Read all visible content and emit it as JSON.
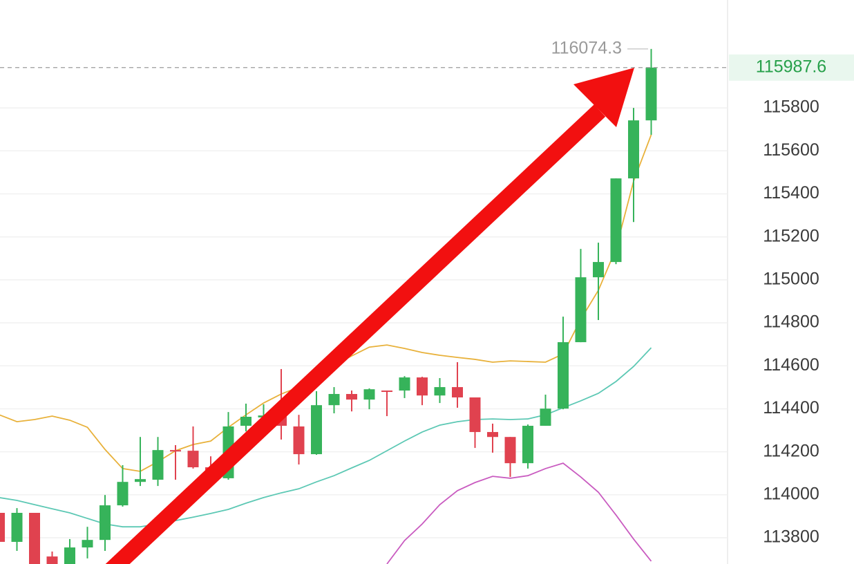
{
  "chart_data": {
    "type": "candlestick",
    "up_color": "#36b35a",
    "down_color": "#e0424f",
    "ylim": [
      113678,
      116302
    ],
    "yticks": [
      113800,
      114000,
      114200,
      114400,
      114600,
      114800,
      115000,
      115200,
      115400,
      115600,
      115800
    ],
    "grid": true,
    "high_marker": 116074.3,
    "last_price": 115987.6,
    "open": [
      113916,
      113781,
      113916,
      113713,
      113649,
      113755,
      113790,
      113951,
      114060,
      114070,
      114208,
      114205,
      114128,
      114077,
      114321,
      114360,
      114369,
      114318,
      114189,
      114417,
      114469,
      114443,
      114485,
      114485,
      114546,
      114462,
      114501,
      114453,
      114292,
      114269,
      114147,
      114321,
      114401,
      114710,
      115012,
      115083,
      115472,
      115742
    ],
    "high": [
      113938,
      113938,
      113916,
      113736,
      113794,
      113851,
      113999,
      114138,
      114269,
      114269,
      114231,
      114318,
      114179,
      114385,
      114424,
      114421,
      114585,
      114372,
      114482,
      114501,
      114485,
      114495,
      114485,
      114552,
      114549,
      114543,
      114617,
      114453,
      114331,
      114269,
      114327,
      114466,
      114829,
      115144,
      115173,
      115472,
      115800,
      116074.3
    ],
    "low": [
      113739,
      113739,
      113600,
      113568,
      113617,
      113704,
      113739,
      113945,
      114041,
      114041,
      114070,
      114122,
      114073,
      114070,
      114295,
      114334,
      114257,
      114141,
      114186,
      114379,
      114388,
      114398,
      114366,
      114450,
      114417,
      114427,
      114405,
      114218,
      114196,
      114083,
      114122,
      114321,
      114398,
      114710,
      114813,
      115073,
      115269,
      115675
    ],
    "close": [
      113781,
      113916,
      113633,
      113601,
      113755,
      113790,
      113951,
      114060,
      114073,
      114208,
      114205,
      114128,
      114077,
      114318,
      114363,
      114369,
      114321,
      114189,
      114417,
      114469,
      114443,
      114491,
      114482,
      114546,
      114462,
      114501,
      114453,
      114292,
      114269,
      114147,
      114321,
      114401,
      114710,
      115012,
      115083,
      115472,
      115742,
      115987.6
    ],
    "lines": [
      {
        "color": "#e8b13a",
        "values": [
          114372,
          114340,
          114350,
          114366,
          114347,
          114314,
          114211,
          114122,
          114109,
          114154,
          114205,
          114234,
          114250,
          114314,
          114372,
          114427,
          114469,
          114501,
          114549,
          114604,
          114646,
          114687,
          114697,
          114681,
          114662,
          114649,
          114639,
          114630,
          114617,
          114623,
          114620,
          114617,
          114655,
          114816,
          114951,
          115144,
          115459,
          115675
        ]
      },
      {
        "color": "#5cc8b4",
        "values": [
          113987,
          113974,
          113954,
          113935,
          113916,
          113890,
          113864,
          113851,
          113851,
          113864,
          113880,
          113896,
          113913,
          113932,
          113961,
          113987,
          114009,
          114028,
          114060,
          114089,
          114125,
          114160,
          114205,
          114250,
          114292,
          114324,
          114340,
          114350,
          114353,
          114350,
          114353,
          114372,
          114405,
          114437,
          114472,
          114527,
          114597,
          114684
        ]
      },
      {
        "color": "#c95bc0",
        "values": [
          null,
          null,
          null,
          null,
          null,
          null,
          null,
          null,
          null,
          null,
          null,
          null,
          null,
          null,
          null,
          null,
          null,
          null,
          null,
          null,
          null,
          null,
          113678,
          113787,
          113864,
          113954,
          114019,
          114057,
          114086,
          114077,
          114089,
          114122,
          114147,
          114083,
          114012,
          113906,
          113794,
          113691
        ]
      }
    ]
  }
}
